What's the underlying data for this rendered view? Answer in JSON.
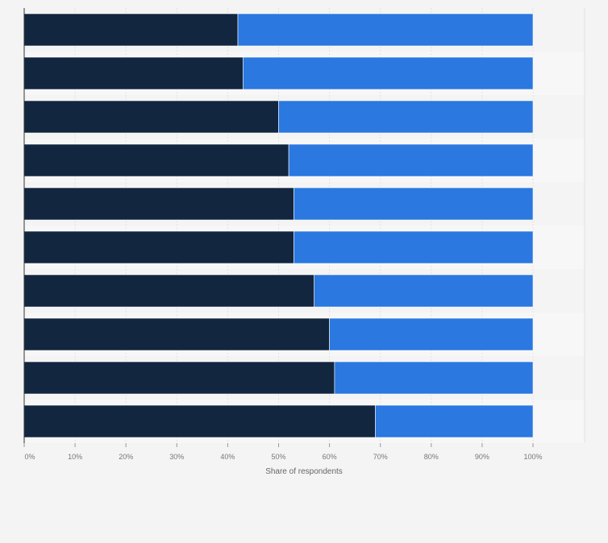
{
  "chart_data": {
    "type": "bar",
    "orientation": "horizontal",
    "stacked": true,
    "categories": [
      "",
      "",
      "",
      "",
      "",
      "",
      "",
      "",
      "",
      ""
    ],
    "series": [
      {
        "values": [
          42,
          43,
          50,
          52,
          53,
          53,
          57,
          60,
          61,
          69
        ],
        "color": "#12263f"
      },
      {
        "values": [
          58,
          57,
          50,
          48,
          47,
          47,
          43,
          40,
          39,
          31
        ],
        "color": "#2a78e0"
      }
    ],
    "xlabel": "Share of respondents",
    "xlim": [
      0,
      110
    ],
    "xticks": [
      "0%",
      "10%",
      "20%",
      "30%",
      "40%",
      "50%",
      "60%",
      "70%",
      "80%",
      "90%",
      "100%"
    ],
    "grid": true
  }
}
